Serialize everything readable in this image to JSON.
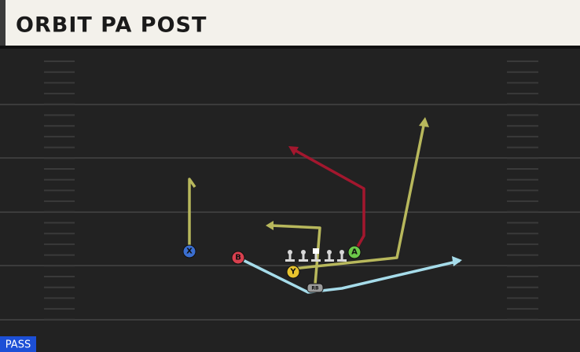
{
  "header": {
    "title": "ORBIT PA POST"
  },
  "badge": "PASS",
  "players": [
    {
      "label": "X"
    },
    {
      "label": "B"
    },
    {
      "label": "Y"
    },
    {
      "label": "A"
    },
    {
      "label": "RB"
    }
  ]
}
